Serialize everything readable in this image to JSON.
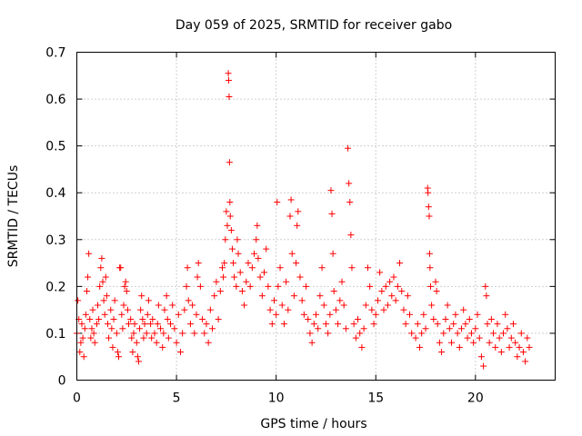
{
  "chart_data": {
    "type": "scatter",
    "title": "Day 059 of 2025, SRMTID for receiver gabo",
    "xlabel": "GPS time / hours",
    "ylabel": "SRMTID / TECUs",
    "xlim": [
      0,
      24
    ],
    "ylim": [
      0,
      0.7
    ],
    "x_ticks": [
      0,
      5,
      10,
      15,
      20
    ],
    "y_ticks": [
      0,
      0.1,
      0.2,
      0.3,
      0.4,
      0.5,
      0.6,
      0.7
    ],
    "x_tick_labels": [
      "0",
      "5",
      "10",
      "15",
      "20"
    ],
    "y_tick_labels": [
      "0",
      "0.1",
      "0.2",
      "0.3",
      "0.4",
      "0.5",
      "0.6",
      "0.7"
    ],
    "grid": true,
    "marker": "+",
    "color": "#ff0000",
    "series": [
      {
        "name": "SRMTID",
        "points": [
          [
            0.0,
            0.1
          ],
          [
            0.05,
            0.17
          ],
          [
            0.1,
            0.13
          ],
          [
            0.15,
            0.06
          ],
          [
            0.2,
            0.08
          ],
          [
            0.25,
            0.12
          ],
          [
            0.3,
            0.09
          ],
          [
            0.35,
            0.05
          ],
          [
            0.4,
            0.11
          ],
          [
            0.45,
            0.14
          ],
          [
            0.5,
            0.19
          ],
          [
            0.55,
            0.22
          ],
          [
            0.6,
            0.27
          ],
          [
            0.65,
            0.13
          ],
          [
            0.7,
            0.09
          ],
          [
            0.75,
            0.11
          ],
          [
            0.8,
            0.15
          ],
          [
            0.85,
            0.1
          ],
          [
            0.9,
            0.08
          ],
          [
            1.0,
            0.12
          ],
          [
            1.05,
            0.16
          ],
          [
            1.1,
            0.13
          ],
          [
            1.15,
            0.2
          ],
          [
            1.2,
            0.24
          ],
          [
            1.25,
            0.26
          ],
          [
            1.3,
            0.21
          ],
          [
            1.35,
            0.17
          ],
          [
            1.4,
            0.14
          ],
          [
            1.45,
            0.22
          ],
          [
            1.5,
            0.18
          ],
          [
            1.55,
            0.12
          ],
          [
            1.6,
            0.09
          ],
          [
            1.7,
            0.15
          ],
          [
            1.75,
            0.11
          ],
          [
            1.8,
            0.07
          ],
          [
            1.85,
            0.13
          ],
          [
            1.9,
            0.17
          ],
          [
            2.0,
            0.1
          ],
          [
            2.05,
            0.06
          ],
          [
            2.1,
            0.05
          ],
          [
            2.15,
            0.24
          ],
          [
            2.2,
            0.24
          ],
          [
            2.25,
            0.14
          ],
          [
            2.3,
            0.11
          ],
          [
            2.35,
            0.16
          ],
          [
            2.4,
            0.2
          ],
          [
            2.45,
            0.21
          ],
          [
            2.5,
            0.19
          ],
          [
            2.55,
            0.15
          ],
          [
            2.6,
            0.12
          ],
          [
            2.7,
            0.13
          ],
          [
            2.75,
            0.09
          ],
          [
            2.8,
            0.06
          ],
          [
            2.85,
            0.1
          ],
          [
            2.9,
            0.12
          ],
          [
            3.0,
            0.08
          ],
          [
            3.05,
            0.05
          ],
          [
            3.1,
            0.04
          ],
          [
            3.15,
            0.11
          ],
          [
            3.2,
            0.15
          ],
          [
            3.25,
            0.18
          ],
          [
            3.3,
            0.13
          ],
          [
            3.35,
            0.09
          ],
          [
            3.4,
            0.12
          ],
          [
            3.5,
            0.1
          ],
          [
            3.55,
            0.14
          ],
          [
            3.6,
            0.17
          ],
          [
            3.7,
            0.12
          ],
          [
            3.75,
            0.09
          ],
          [
            3.8,
            0.13
          ],
          [
            3.9,
            0.1
          ],
          [
            4.0,
            0.08
          ],
          [
            4.05,
            0.12
          ],
          [
            4.1,
            0.16
          ],
          [
            4.2,
            0.11
          ],
          [
            4.3,
            0.07
          ],
          [
            4.35,
            0.1
          ],
          [
            4.4,
            0.15
          ],
          [
            4.5,
            0.18
          ],
          [
            4.55,
            0.13
          ],
          [
            4.6,
            0.09
          ],
          [
            4.7,
            0.12
          ],
          [
            4.8,
            0.16
          ],
          [
            4.9,
            0.11
          ],
          [
            5.0,
            0.08
          ],
          [
            5.1,
            0.14
          ],
          [
            5.2,
            0.06
          ],
          [
            5.3,
            0.1
          ],
          [
            5.4,
            0.15
          ],
          [
            5.5,
            0.2
          ],
          [
            5.55,
            0.24
          ],
          [
            5.6,
            0.17
          ],
          [
            5.7,
            0.12
          ],
          [
            5.8,
            0.16
          ],
          [
            5.9,
            0.1
          ],
          [
            6.0,
            0.14
          ],
          [
            6.05,
            0.22
          ],
          [
            6.1,
            0.25
          ],
          [
            6.2,
            0.2
          ],
          [
            6.3,
            0.13
          ],
          [
            6.4,
            0.1
          ],
          [
            6.5,
            0.12
          ],
          [
            6.6,
            0.08
          ],
          [
            6.7,
            0.15
          ],
          [
            6.8,
            0.11
          ],
          [
            6.9,
            0.18
          ],
          [
            7.0,
            0.21
          ],
          [
            7.1,
            0.13
          ],
          [
            7.2,
            0.19
          ],
          [
            7.3,
            0.24
          ],
          [
            7.35,
            0.22
          ],
          [
            7.4,
            0.25
          ],
          [
            7.45,
            0.3
          ],
          [
            7.5,
            0.36
          ],
          [
            7.55,
            0.33
          ],
          [
            7.6,
            0.655
          ],
          [
            7.62,
            0.64
          ],
          [
            7.64,
            0.605
          ],
          [
            7.66,
            0.465
          ],
          [
            7.68,
            0.38
          ],
          [
            7.7,
            0.35
          ],
          [
            7.75,
            0.32
          ],
          [
            7.8,
            0.28
          ],
          [
            7.85,
            0.25
          ],
          [
            7.9,
            0.22
          ],
          [
            8.0,
            0.2
          ],
          [
            8.05,
            0.3
          ],
          [
            8.1,
            0.27
          ],
          [
            8.2,
            0.23
          ],
          [
            8.3,
            0.19
          ],
          [
            8.4,
            0.16
          ],
          [
            8.5,
            0.21
          ],
          [
            8.6,
            0.25
          ],
          [
            8.7,
            0.2
          ],
          [
            8.8,
            0.24
          ],
          [
            8.9,
            0.27
          ],
          [
            9.0,
            0.3
          ],
          [
            9.05,
            0.33
          ],
          [
            9.1,
            0.26
          ],
          [
            9.2,
            0.22
          ],
          [
            9.3,
            0.18
          ],
          [
            9.4,
            0.23
          ],
          [
            9.5,
            0.28
          ],
          [
            9.6,
            0.2
          ],
          [
            9.7,
            0.15
          ],
          [
            9.8,
            0.12
          ],
          [
            9.9,
            0.17
          ],
          [
            10.0,
            0.14
          ],
          [
            10.05,
            0.38
          ],
          [
            10.1,
            0.2
          ],
          [
            10.2,
            0.24
          ],
          [
            10.3,
            0.16
          ],
          [
            10.4,
            0.12
          ],
          [
            10.5,
            0.21
          ],
          [
            10.6,
            0.15
          ],
          [
            10.7,
            0.35
          ],
          [
            10.75,
            0.385
          ],
          [
            10.8,
            0.27
          ],
          [
            10.9,
            0.18
          ],
          [
            11.0,
            0.25
          ],
          [
            11.05,
            0.33
          ],
          [
            11.1,
            0.36
          ],
          [
            11.2,
            0.22
          ],
          [
            11.3,
            0.17
          ],
          [
            11.4,
            0.14
          ],
          [
            11.5,
            0.2
          ],
          [
            11.6,
            0.13
          ],
          [
            11.7,
            0.1
          ],
          [
            11.8,
            0.08
          ],
          [
            11.9,
            0.12
          ],
          [
            12.0,
            0.14
          ],
          [
            12.1,
            0.11
          ],
          [
            12.2,
            0.18
          ],
          [
            12.3,
            0.24
          ],
          [
            12.4,
            0.16
          ],
          [
            12.5,
            0.12
          ],
          [
            12.6,
            0.1
          ],
          [
            12.7,
            0.14
          ],
          [
            12.75,
            0.405
          ],
          [
            12.8,
            0.355
          ],
          [
            12.85,
            0.27
          ],
          [
            12.9,
            0.19
          ],
          [
            13.0,
            0.15
          ],
          [
            13.1,
            0.12
          ],
          [
            13.2,
            0.17
          ],
          [
            13.3,
            0.21
          ],
          [
            13.4,
            0.16
          ],
          [
            13.5,
            0.11
          ],
          [
            13.6,
            0.495
          ],
          [
            13.65,
            0.42
          ],
          [
            13.7,
            0.38
          ],
          [
            13.75,
            0.31
          ],
          [
            13.8,
            0.24
          ],
          [
            13.9,
            0.12
          ],
          [
            14.0,
            0.09
          ],
          [
            14.1,
            0.13
          ],
          [
            14.2,
            0.1
          ],
          [
            14.3,
            0.07
          ],
          [
            14.4,
            0.11
          ],
          [
            14.5,
            0.16
          ],
          [
            14.6,
            0.24
          ],
          [
            14.7,
            0.2
          ],
          [
            14.8,
            0.15
          ],
          [
            14.9,
            0.12
          ],
          [
            15.0,
            0.14
          ],
          [
            15.1,
            0.17
          ],
          [
            15.2,
            0.23
          ],
          [
            15.3,
            0.19
          ],
          [
            15.4,
            0.15
          ],
          [
            15.5,
            0.2
          ],
          [
            15.6,
            0.16
          ],
          [
            15.7,
            0.21
          ],
          [
            15.8,
            0.18
          ],
          [
            15.9,
            0.22
          ],
          [
            16.0,
            0.17
          ],
          [
            16.1,
            0.2
          ],
          [
            16.2,
            0.25
          ],
          [
            16.3,
            0.19
          ],
          [
            16.4,
            0.15
          ],
          [
            16.5,
            0.12
          ],
          [
            16.6,
            0.18
          ],
          [
            16.7,
            0.14
          ],
          [
            16.8,
            0.1
          ],
          [
            17.0,
            0.09
          ],
          [
            17.1,
            0.12
          ],
          [
            17.2,
            0.07
          ],
          [
            17.3,
            0.1
          ],
          [
            17.4,
            0.14
          ],
          [
            17.5,
            0.11
          ],
          [
            17.6,
            0.41
          ],
          [
            17.62,
            0.4
          ],
          [
            17.65,
            0.37
          ],
          [
            17.68,
            0.35
          ],
          [
            17.7,
            0.27
          ],
          [
            17.72,
            0.24
          ],
          [
            17.75,
            0.2
          ],
          [
            17.8,
            0.16
          ],
          [
            17.9,
            0.13
          ],
          [
            18.0,
            0.21
          ],
          [
            18.05,
            0.19
          ],
          [
            18.1,
            0.12
          ],
          [
            18.2,
            0.08
          ],
          [
            18.3,
            0.06
          ],
          [
            18.4,
            0.1
          ],
          [
            18.5,
            0.13
          ],
          [
            18.6,
            0.16
          ],
          [
            18.7,
            0.11
          ],
          [
            18.8,
            0.08
          ],
          [
            18.9,
            0.12
          ],
          [
            19.0,
            0.14
          ],
          [
            19.1,
            0.1
          ],
          [
            19.2,
            0.07
          ],
          [
            19.3,
            0.11
          ],
          [
            19.4,
            0.15
          ],
          [
            19.5,
            0.12
          ],
          [
            19.6,
            0.09
          ],
          [
            19.7,
            0.13
          ],
          [
            19.8,
            0.1
          ],
          [
            19.9,
            0.08
          ],
          [
            20.0,
            0.11
          ],
          [
            20.1,
            0.14
          ],
          [
            20.2,
            0.09
          ],
          [
            20.3,
            0.05
          ],
          [
            20.4,
            0.03
          ],
          [
            20.5,
            0.2
          ],
          [
            20.55,
            0.18
          ],
          [
            20.6,
            0.12
          ],
          [
            20.7,
            0.08
          ],
          [
            20.8,
            0.13
          ],
          [
            20.9,
            0.1
          ],
          [
            21.0,
            0.07
          ],
          [
            21.1,
            0.12
          ],
          [
            21.2,
            0.09
          ],
          [
            21.3,
            0.06
          ],
          [
            21.4,
            0.1
          ],
          [
            21.5,
            0.14
          ],
          [
            21.6,
            0.11
          ],
          [
            21.7,
            0.07
          ],
          [
            21.8,
            0.09
          ],
          [
            21.9,
            0.12
          ],
          [
            22.0,
            0.08
          ],
          [
            22.1,
            0.05
          ],
          [
            22.2,
            0.07
          ],
          [
            22.3,
            0.1
          ],
          [
            22.4,
            0.06
          ],
          [
            22.5,
            0.04
          ],
          [
            22.6,
            0.09
          ],
          [
            22.7,
            0.07
          ]
        ]
      }
    ]
  }
}
